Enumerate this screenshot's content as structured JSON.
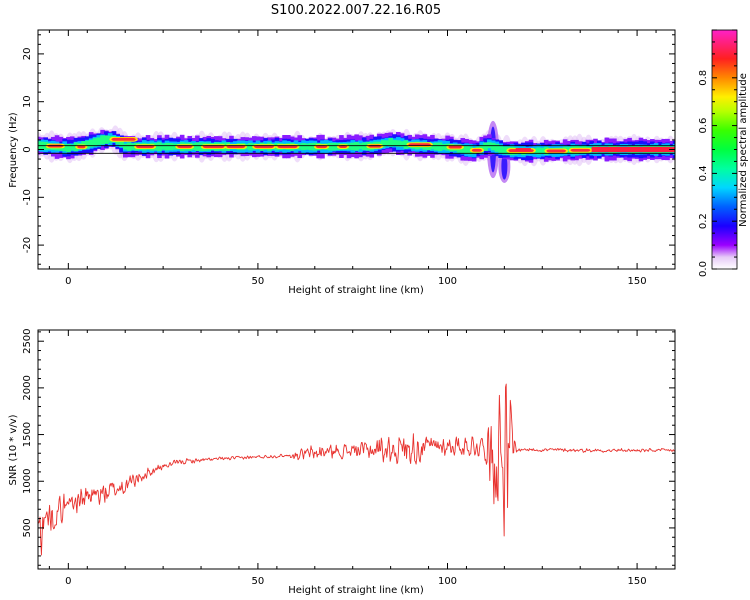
{
  "figure_title": "S100.2022.007.22.16.R05",
  "colors": {
    "snr_line": "#e8322e",
    "frame": "#000000"
  },
  "chart_data": [
    {
      "type": "heatmap",
      "xlabel": "Height of straight line (km)",
      "ylabel": "Frequency (Hz)",
      "xlim": [
        -8,
        160
      ],
      "ylim": [
        -25,
        25
      ],
      "xticks": [
        0,
        50,
        100,
        150
      ],
      "yticks": [
        -20,
        -10,
        0,
        10,
        20
      ],
      "x_tick_labels": [
        "0",
        "50",
        "100",
        "150"
      ],
      "y_tick_labels": [
        "-20",
        "-10",
        "0",
        "10",
        "20"
      ],
      "grid": false,
      "colormap": "gist_ncar",
      "colorbar": {
        "label": "Normalized spectral amplitude",
        "range": [
          0.0,
          1.0
        ],
        "ticks": [
          0.0,
          0.2,
          0.4,
          0.6,
          0.8
        ],
        "tick_labels": [
          "0.0",
          "0.2",
          "0.4",
          "0.6",
          "0.8"
        ]
      },
      "ridge": [
        {
          "x": -7,
          "f": 0.8
        },
        {
          "x": 0,
          "f": 0.3
        },
        {
          "x": 5,
          "f": 1.0
        },
        {
          "x": 9,
          "f": 2.0
        },
        {
          "x": 12,
          "f": 2.2
        },
        {
          "x": 15,
          "f": 0.6
        },
        {
          "x": 30,
          "f": 0.6
        },
        {
          "x": 50,
          "f": 0.6
        },
        {
          "x": 70,
          "f": 0.6
        },
        {
          "x": 80,
          "f": 0.7
        },
        {
          "x": 85,
          "f": 1.5
        },
        {
          "x": 90,
          "f": 0.9
        },
        {
          "x": 100,
          "f": 0.5
        },
        {
          "x": 107,
          "f": -0.3
        },
        {
          "x": 111,
          "f": 0.9
        },
        {
          "x": 115,
          "f": -0.2
        },
        {
          "x": 120,
          "f": -0.4
        },
        {
          "x": 140,
          "f": 0.0
        },
        {
          "x": 160,
          "f": 0.0
        }
      ],
      "spectral_spread": [
        {
          "x": 112,
          "f_min": -6,
          "f_max": 6
        },
        {
          "x": 115,
          "f_min": -7,
          "f_max": 0
        }
      ],
      "reference_band": {
        "f_min": -0.8,
        "f_max": 0.8,
        "x_from": -8,
        "x_to": 160
      }
    },
    {
      "type": "line",
      "xlabel": "Height of straight line (km)",
      "ylabel": "SNR (10 * v/v)",
      "xlim": [
        -8,
        160
      ],
      "ylim": [
        60,
        2620
      ],
      "xticks": [
        0,
        50,
        100,
        150
      ],
      "yticks": [
        500,
        1000,
        1500,
        2000,
        2500
      ],
      "x_tick_labels": [
        "0",
        "50",
        "100",
        "150"
      ],
      "y_tick_labels": [
        "500",
        "1000",
        "1500",
        "2000",
        "2500"
      ],
      "grid": false,
      "series_trend": [
        {
          "x": -8,
          "y": 450
        },
        {
          "x": -6,
          "y": 600
        },
        {
          "x": -2,
          "y": 700
        },
        {
          "x": 0,
          "y": 770
        },
        {
          "x": 5,
          "y": 830
        },
        {
          "x": 10,
          "y": 880
        },
        {
          "x": 15,
          "y": 950
        },
        {
          "x": 20,
          "y": 1070
        },
        {
          "x": 25,
          "y": 1160
        },
        {
          "x": 30,
          "y": 1210
        },
        {
          "x": 40,
          "y": 1240
        },
        {
          "x": 50,
          "y": 1260
        },
        {
          "x": 60,
          "y": 1280
        },
        {
          "x": 70,
          "y": 1320
        },
        {
          "x": 80,
          "y": 1340
        },
        {
          "x": 90,
          "y": 1360
        },
        {
          "x": 100,
          "y": 1380
        },
        {
          "x": 110,
          "y": 1380
        },
        {
          "x": 113,
          "y": 1300
        },
        {
          "x": 117,
          "y": 1330
        },
        {
          "x": 120,
          "y": 1340
        },
        {
          "x": 140,
          "y": 1330
        },
        {
          "x": 160,
          "y": 1330
        }
      ],
      "noise_amplitude": [
        {
          "x": -8,
          "a": 400
        },
        {
          "x": -5,
          "a": 200
        },
        {
          "x": 0,
          "a": 170
        },
        {
          "x": 10,
          "a": 150
        },
        {
          "x": 18,
          "a": 90
        },
        {
          "x": 25,
          "a": 40
        },
        {
          "x": 40,
          "a": 22
        },
        {
          "x": 58,
          "a": 22
        },
        {
          "x": 60,
          "a": 60
        },
        {
          "x": 65,
          "a": 110
        },
        {
          "x": 75,
          "a": 90
        },
        {
          "x": 85,
          "a": 180
        },
        {
          "x": 92,
          "a": 230
        },
        {
          "x": 96,
          "a": 110
        },
        {
          "x": 105,
          "a": 140
        },
        {
          "x": 110,
          "a": 170
        },
        {
          "x": 112,
          "a": 700
        },
        {
          "x": 114,
          "a": 950
        },
        {
          "x": 116,
          "a": 1000
        },
        {
          "x": 117.5,
          "a": 250
        },
        {
          "x": 118.5,
          "a": 25
        },
        {
          "x": 160,
          "a": 22
        }
      ]
    }
  ]
}
